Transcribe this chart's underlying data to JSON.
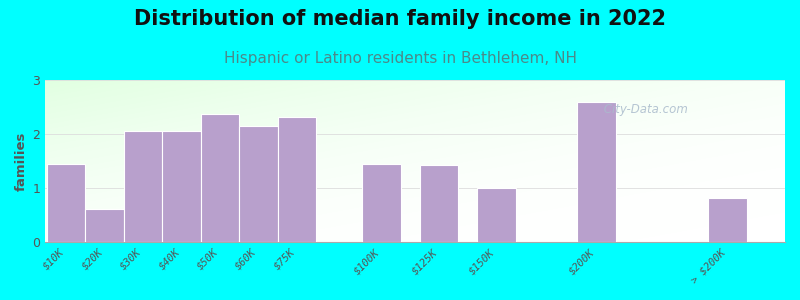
{
  "title": "Distribution of median family income in 2022",
  "subtitle": "Hispanic or Latino residents in Bethlehem, NH",
  "ylabel": "families",
  "background_color": "#00FFFF",
  "bar_color": "#b8a0cc",
  "bar_edge_color": "#ffffff",
  "categories": [
    "$10K",
    "$20K",
    "$30K",
    "$40K",
    "$50K",
    "$60K",
    "$75K",
    "$100K",
    "$125K",
    "$150K",
    "$200K",
    "> $200K"
  ],
  "values": [
    1.45,
    0.62,
    2.05,
    2.05,
    2.38,
    2.15,
    2.32,
    1.45,
    1.42,
    1.0,
    2.6,
    0.82
  ],
  "positions": [
    0,
    1,
    2,
    3,
    4,
    5,
    6,
    8.2,
    9.7,
    11.2,
    13.8,
    17.2
  ],
  "bar_width": 1.0,
  "xlim": [
    -0.55,
    18.7
  ],
  "ylim": [
    0,
    3
  ],
  "yticks": [
    0,
    1,
    2,
    3
  ],
  "title_fontsize": 15,
  "subtitle_fontsize": 11,
  "subtitle_color": "#4a8a8a",
  "title_color": "#111111",
  "watermark_text": " City-Data.com",
  "watermark_color": "#aabbcc",
  "tick_label_color": "#555555",
  "ylabel_color": "#555555",
  "grid_color": "#dddddd",
  "plot_bg_left": "#d6ecd6",
  "plot_bg_right": "#f5fff5"
}
